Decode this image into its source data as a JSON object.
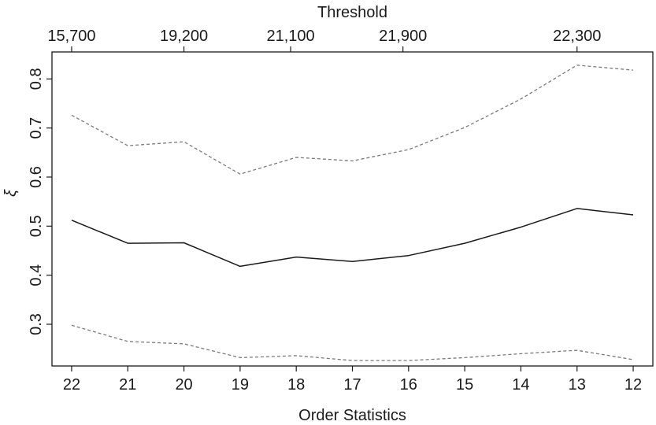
{
  "chart_data": {
    "type": "line",
    "title": "",
    "xlabel": "Order Statistics",
    "ylabel": "ξ",
    "top_axis": {
      "label": "Threshold",
      "ticks": [
        {
          "at": 22,
          "label": "15,700"
        },
        {
          "at": 20,
          "label": "19,200"
        },
        {
          "at": 18.1,
          "label": "21,100"
        },
        {
          "at": 16.1,
          "label": "21,900"
        },
        {
          "at": 13,
          "label": "22,300"
        }
      ]
    },
    "x": [
      22,
      21,
      20,
      19,
      18,
      17,
      16,
      15,
      14,
      13,
      12
    ],
    "x_tick_labels": [
      "22",
      "21",
      "20",
      "19",
      "18",
      "17",
      "16",
      "15",
      "14",
      "13",
      "12"
    ],
    "x_reversed": true,
    "xlim": [
      22.35,
      11.65
    ],
    "ylim": [
      0.215,
      0.855
    ],
    "y_ticks": [
      0.3,
      0.4,
      0.5,
      0.6,
      0.7,
      0.8
    ],
    "y_tick_labels": [
      "0.3",
      "0.4",
      "0.5",
      "0.6",
      "0.7",
      "0.8"
    ],
    "grid": false,
    "series": [
      {
        "role": "estimate",
        "style": "solid",
        "color": "#1a1a1a",
        "values": [
          0.512,
          0.465,
          0.466,
          0.418,
          0.437,
          0.428,
          0.44,
          0.465,
          0.498,
          0.536,
          0.523
        ]
      },
      {
        "role": "upper",
        "style": "dashed",
        "color": "#7a7a7a",
        "values": [
          0.726,
          0.664,
          0.672,
          0.606,
          0.64,
          0.633,
          0.656,
          0.701,
          0.759,
          0.828,
          0.818
        ]
      },
      {
        "role": "lower",
        "style": "dashed",
        "color": "#7a7a7a",
        "values": [
          0.298,
          0.265,
          0.26,
          0.232,
          0.236,
          0.226,
          0.226,
          0.232,
          0.24,
          0.247,
          0.228
        ]
      }
    ]
  }
}
